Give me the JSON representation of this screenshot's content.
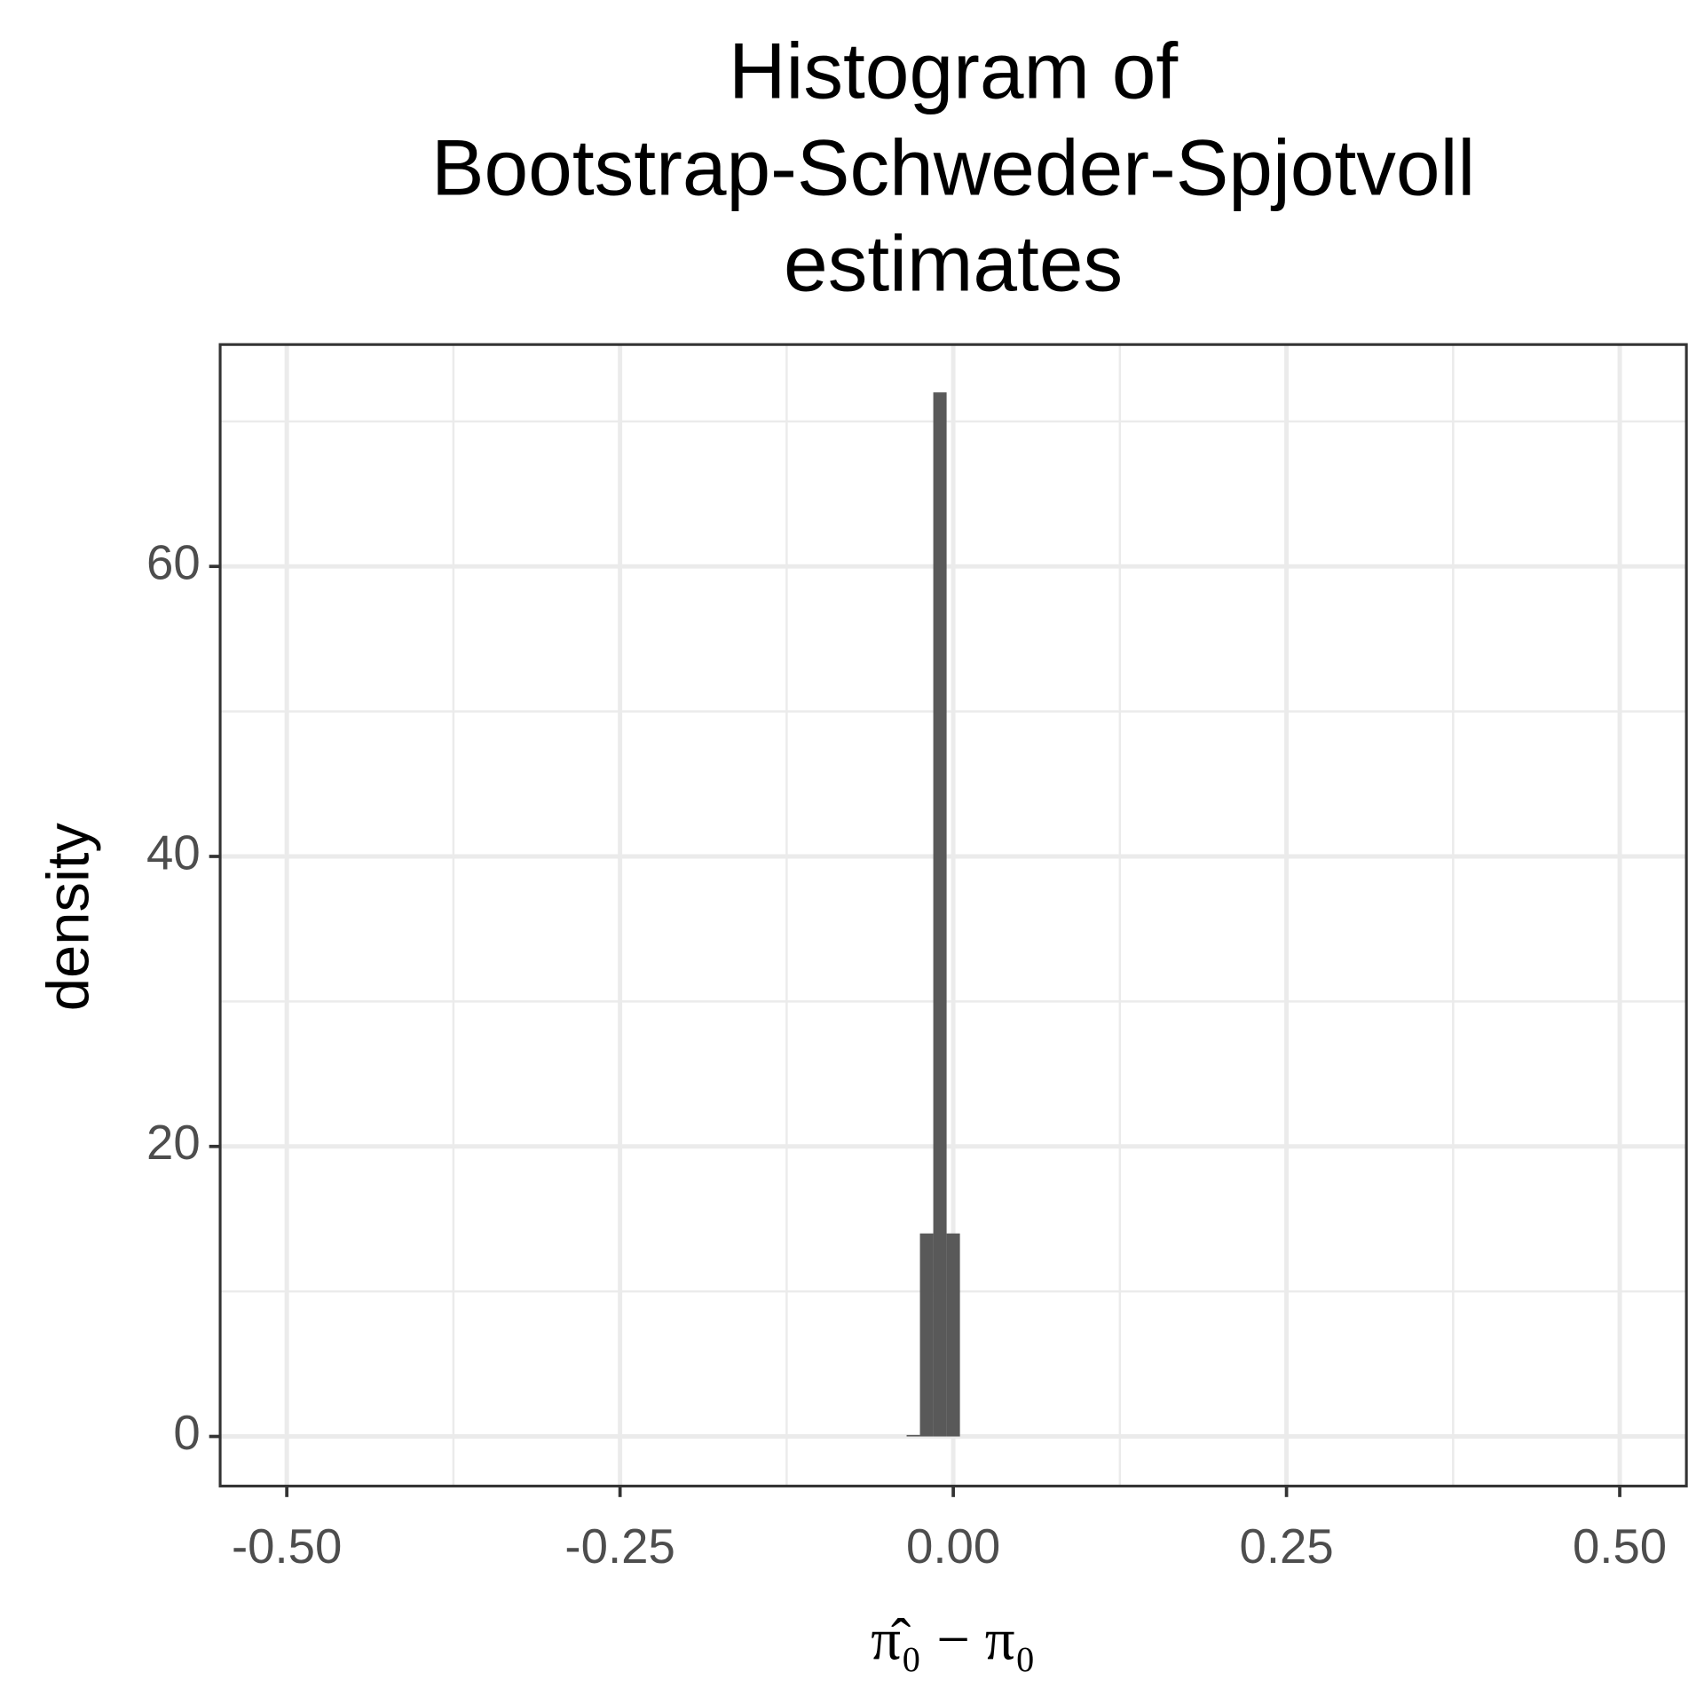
{
  "chart_data": {
    "type": "histogram",
    "title": [
      "Histogram of",
      "Bootstrap-Schweder-Spjotvoll",
      "estimates"
    ],
    "x_label": "π̂₀ − π₀",
    "y_label": "density",
    "bins": [
      -0.035,
      -0.025,
      -0.015,
      -0.005,
      0.005
    ],
    "values": [
      0.1,
      14,
      72,
      14
    ],
    "color": "#595959",
    "xlim": [
      -0.55,
      0.55
    ],
    "ylim": [
      -3.42,
      75.3
    ],
    "xticks": [
      {
        "value": -0.5,
        "label": "-0.50"
      },
      {
        "value": -0.25,
        "label": "-0.25"
      },
      {
        "value": 0,
        "label": "0.00"
      },
      {
        "value": 0.25,
        "label": "0.25"
      },
      {
        "value": 0.5,
        "label": "0.50"
      }
    ],
    "yticks": [
      0,
      20,
      40,
      60
    ],
    "grid": true
  }
}
